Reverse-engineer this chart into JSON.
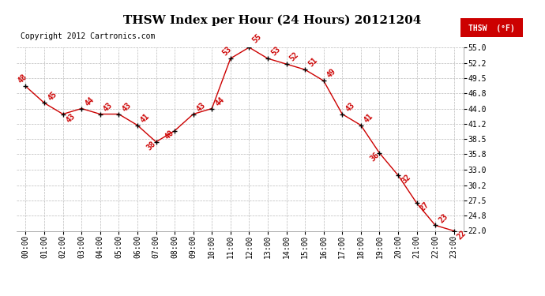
{
  "title": "THSW Index per Hour (24 Hours) 20121204",
  "copyright": "Copyright 2012 Cartronics.com",
  "legend_label": "THSW  (°F)",
  "hours": [
    0,
    1,
    2,
    3,
    4,
    5,
    6,
    7,
    8,
    9,
    10,
    11,
    12,
    13,
    14,
    15,
    16,
    17,
    18,
    19,
    20,
    21,
    22,
    23
  ],
  "x_labels": [
    "00:00",
    "01:00",
    "02:00",
    "03:00",
    "04:00",
    "05:00",
    "06:00",
    "07:00",
    "08:00",
    "09:00",
    "10:00",
    "11:00",
    "12:00",
    "13:00",
    "14:00",
    "15:00",
    "16:00",
    "17:00",
    "18:00",
    "19:00",
    "20:00",
    "21:00",
    "22:00",
    "23:00"
  ],
  "values": [
    48,
    45,
    43,
    44,
    43,
    43,
    41,
    38,
    40,
    43,
    44,
    53,
    55,
    53,
    52,
    51,
    49,
    43,
    41,
    36,
    32,
    27,
    23,
    22
  ],
  "ylim": [
    22.0,
    55.0
  ],
  "ytick_vals": [
    22.0,
    24.8,
    27.5,
    30.2,
    33.0,
    35.8,
    38.5,
    41.2,
    44.0,
    46.8,
    49.5,
    52.2,
    55.0
  ],
  "ytick_labels": [
    "22.0",
    "24.8",
    "27.5",
    "30.2",
    "33.0",
    "35.8",
    "38.5",
    "41.2",
    "44.0",
    "46.8",
    "49.5",
    "52.2",
    "55.0"
  ],
  "line_color": "#CC0000",
  "marker_color": "#000000",
  "label_color": "#CC0000",
  "bg_color": "#FFFFFF",
  "grid_color": "#BBBBBB",
  "title_fontsize": 11,
  "copyright_fontsize": 7,
  "label_fontsize": 7,
  "tick_fontsize": 7
}
